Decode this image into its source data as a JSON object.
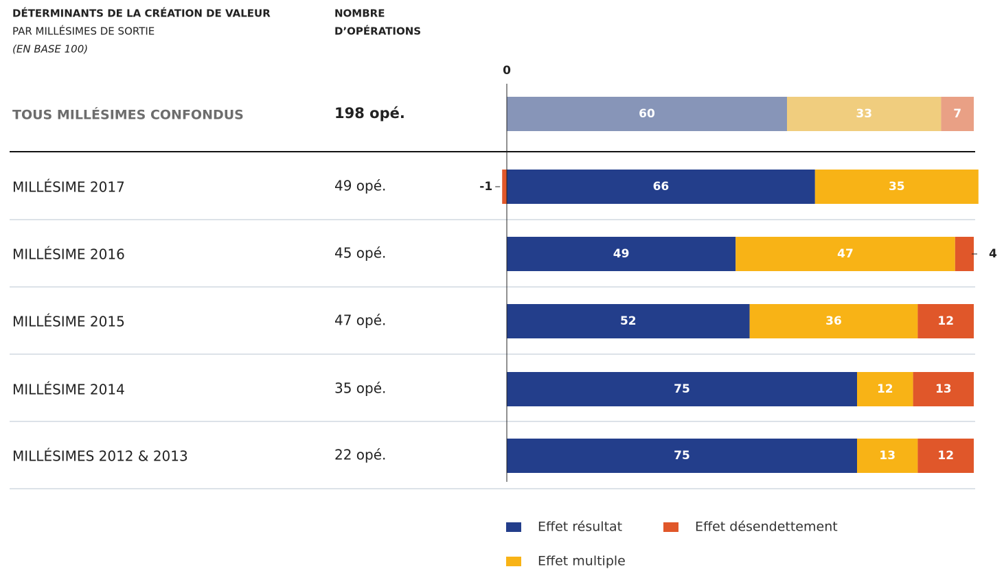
{
  "chart_data": {
    "type": "bar",
    "orientation": "horizontal",
    "stacked": true,
    "title": "DÉTERMINANTS DE LA CRÉATION DE VALEUR",
    "subtitle": "PAR MILLÉSIMES DE SORTIE",
    "note": "(EN BASE 100)",
    "column_header": [
      "NOMBRE",
      "D’OPÉRATIONS"
    ],
    "categories": [
      "TOUS MILLÉSIMES CONFONDUS",
      "MILLÉSIME 2017",
      "MILLÉSIME 2016",
      "MILLÉSIME 2015",
      "MILLÉSIME 2014",
      "MILLÉSIMES 2012 & 2013"
    ],
    "operations": [
      "198 opé.",
      "49 opé.",
      "45 opé.",
      "47 opé.",
      "35 opé.",
      "22 opé."
    ],
    "series": [
      {
        "name": "Effet résultat",
        "color": "#233e8b",
        "faded_color": "#8795b8",
        "values": [
          60,
          66,
          49,
          52,
          75,
          75
        ]
      },
      {
        "name": "Effet multiple",
        "color": "#f8b316",
        "faded_color": "#f0cd7e",
        "values": [
          33,
          35,
          47,
          36,
          12,
          13
        ]
      },
      {
        "name": "Effet désendettement",
        "color": "#e0572a",
        "faded_color": "#e9a085",
        "values": [
          7,
          -1,
          4,
          12,
          13,
          12
        ]
      }
    ],
    "faded_rows": [
      0
    ],
    "xlim": [
      0,
      100
    ],
    "xticks": [
      0
    ]
  }
}
